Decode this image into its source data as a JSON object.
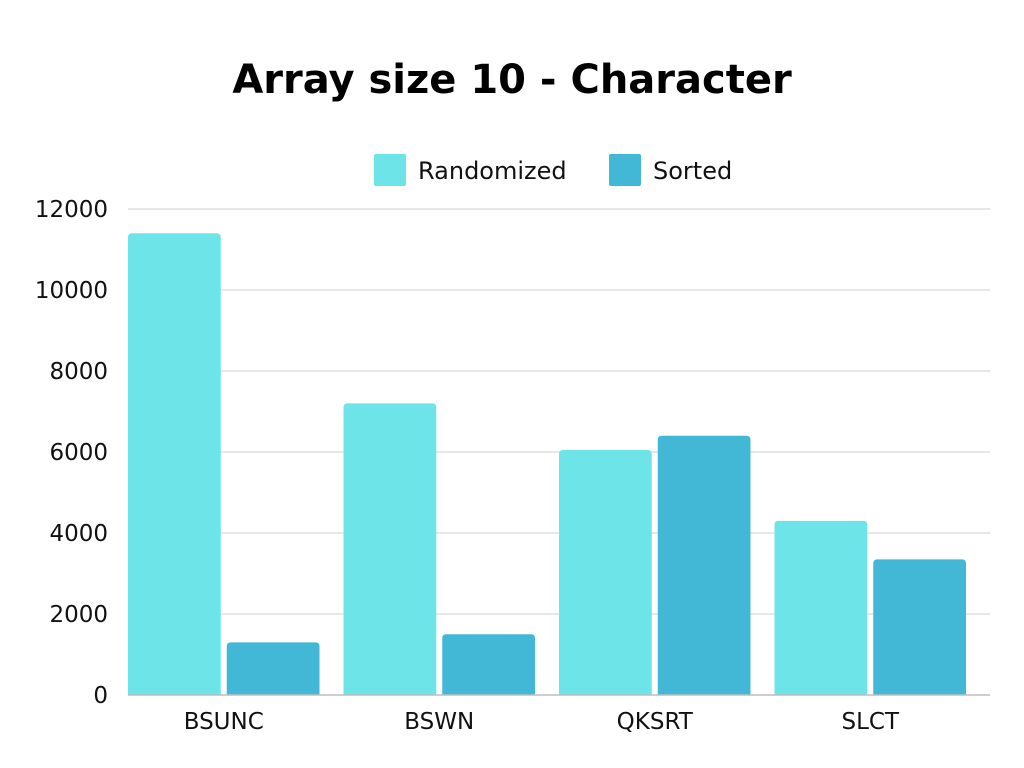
{
  "chart_data": {
    "type": "bar",
    "title": "Array size 10 - Character",
    "xlabel": "",
    "ylabel": "",
    "categories": [
      "BSUNC",
      "BSWN",
      "QKSRT",
      "SLCT"
    ],
    "series": [
      {
        "name": "Randomized",
        "color": "#6ce4e8",
        "values": [
          11400,
          7200,
          6050,
          4300
        ]
      },
      {
        "name": "Sorted",
        "color": "#43b8d6",
        "values": [
          1300,
          1500,
          6400,
          3350
        ]
      }
    ],
    "ylim": [
      0,
      12000
    ],
    "yticks": [
      0,
      2000,
      4000,
      6000,
      8000,
      10000,
      12000
    ],
    "grid": true,
    "legend_position": "top-center"
  }
}
